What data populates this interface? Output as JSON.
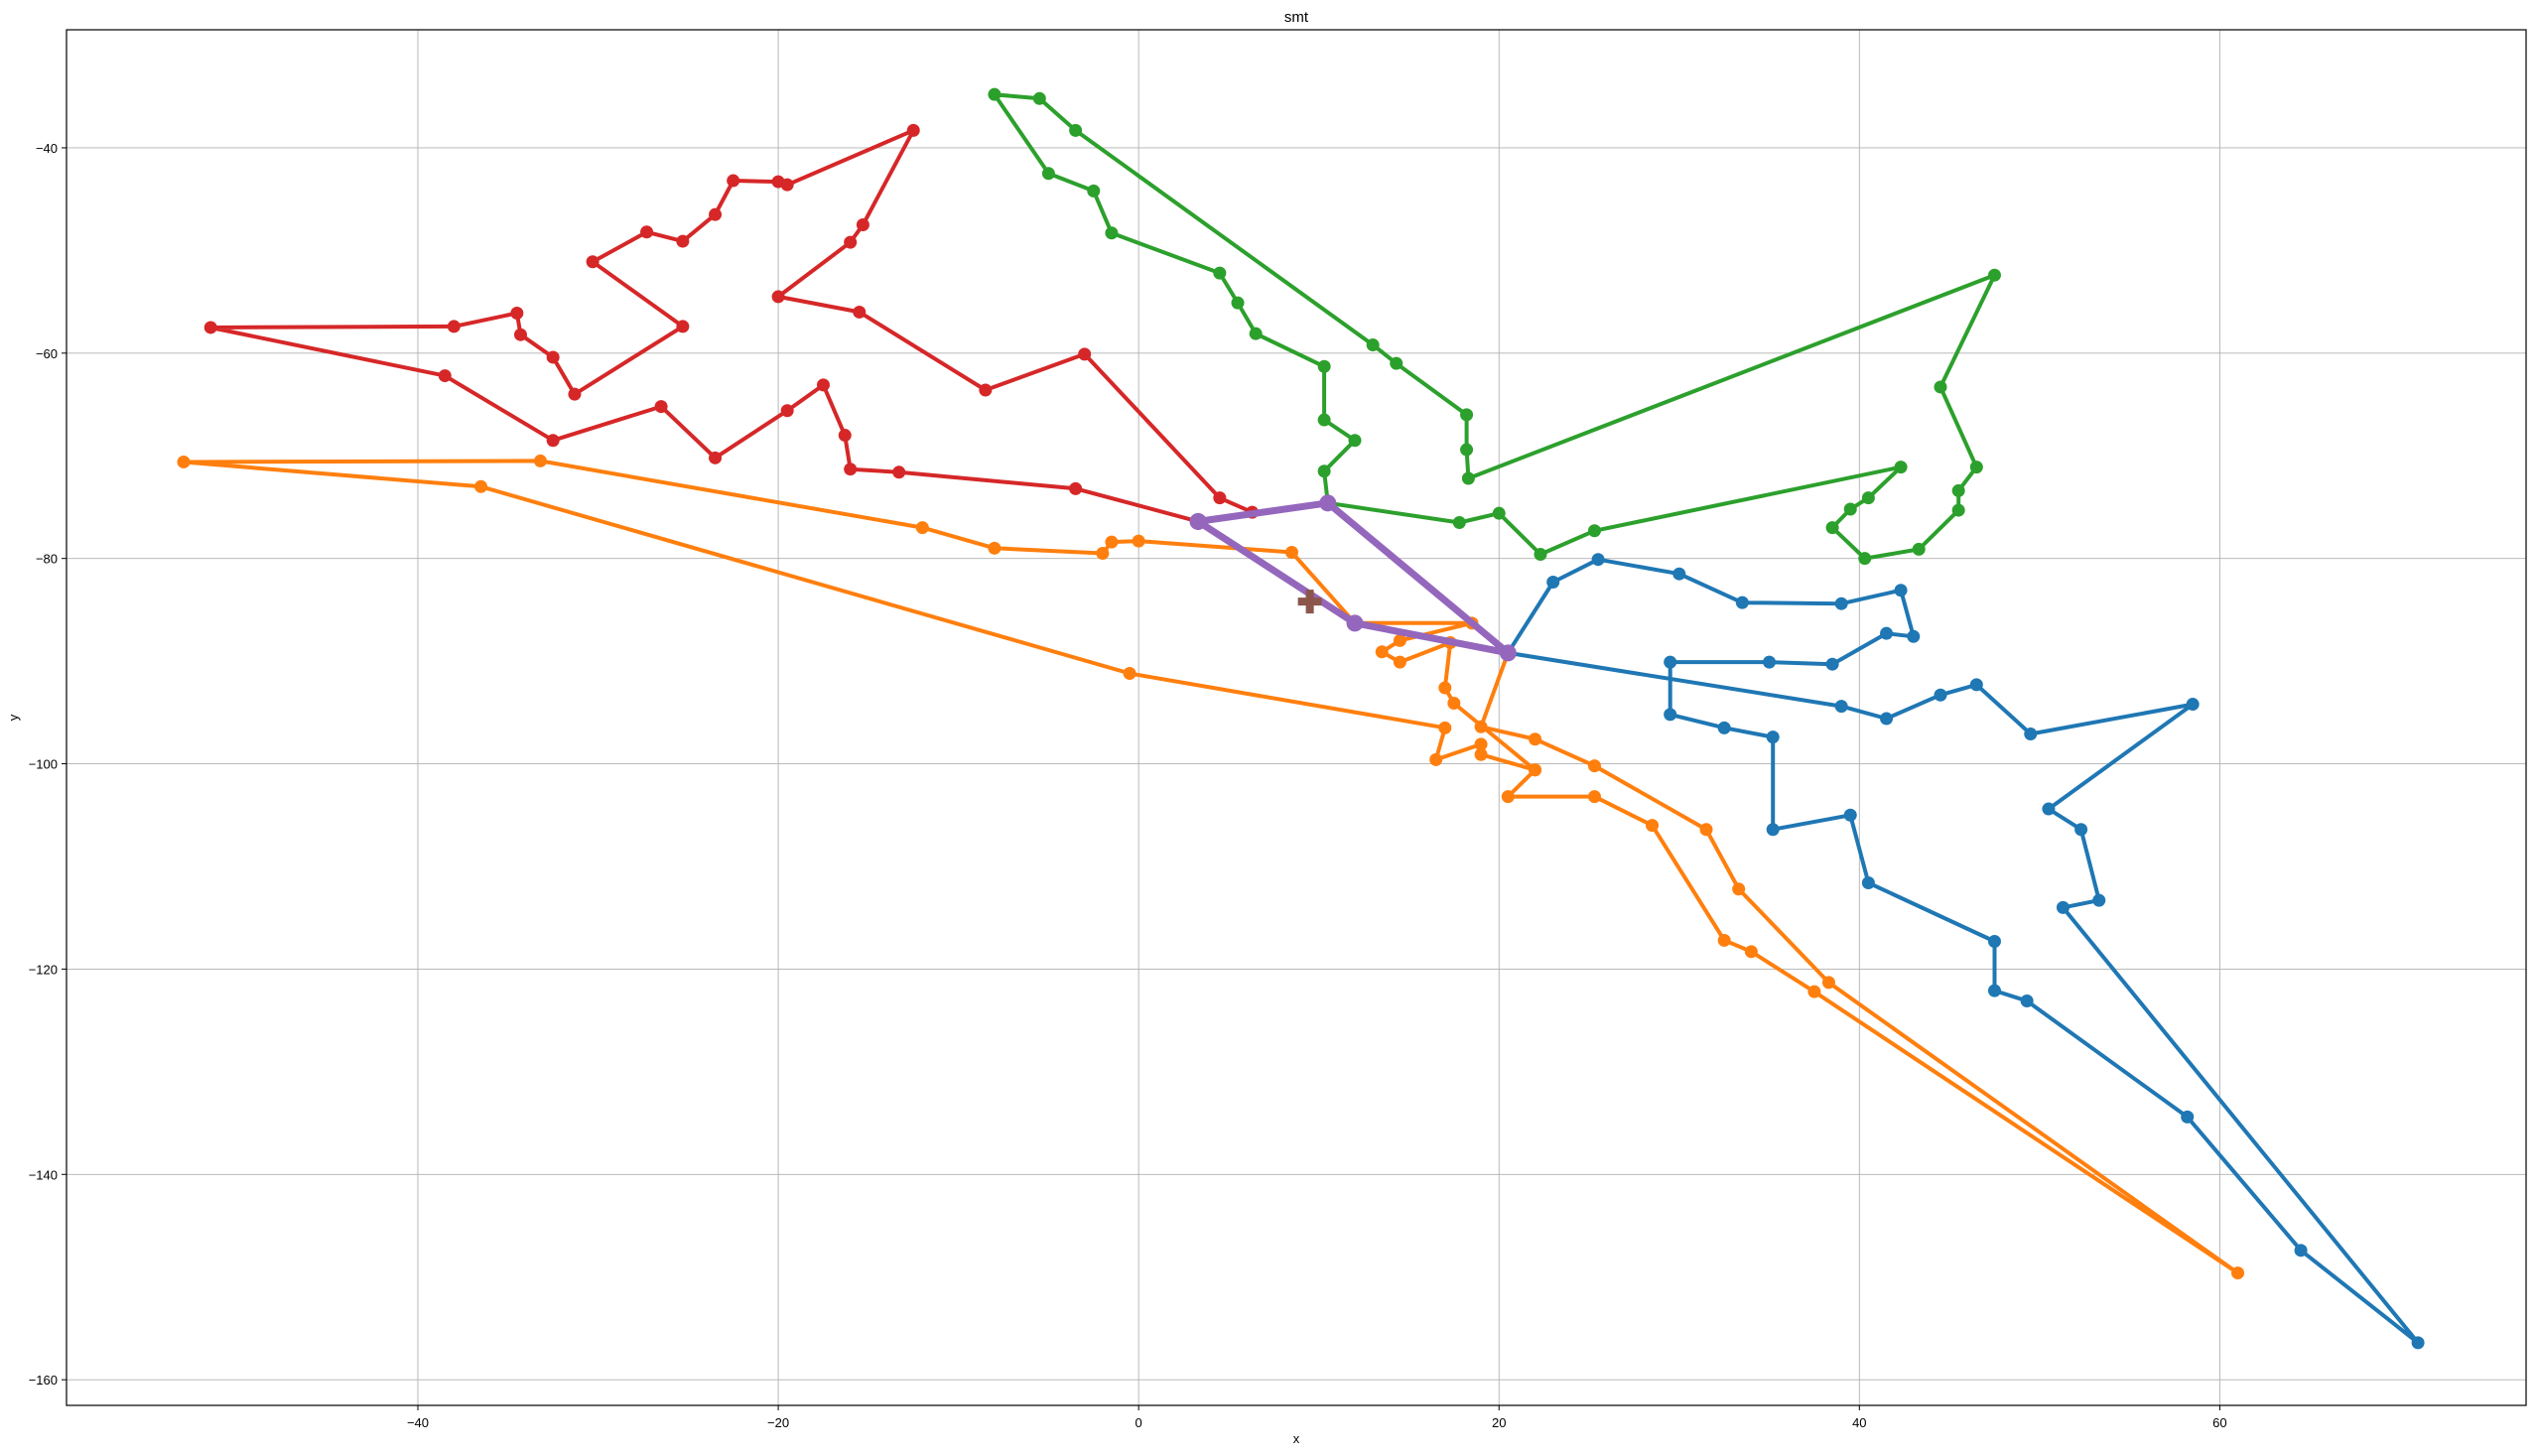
{
  "chart_data": {
    "type": "line",
    "title": "smt",
    "xlabel": "x",
    "ylabel": "y",
    "xlim": [
      -59.5,
      77
    ],
    "ylim": [
      -162.5,
      -28.5
    ],
    "xticks": [
      -40,
      -20,
      0,
      20,
      40,
      60
    ],
    "yticks": [
      -40,
      -60,
      -80,
      -100,
      -120,
      -140,
      -160
    ],
    "grid": true,
    "series": [
      {
        "color": "#1f77b4",
        "points": [
          [
            20.5,
            -89.2
          ],
          [
            23.0,
            -82.3
          ],
          [
            25.5,
            -80.1
          ],
          [
            30.0,
            -81.5
          ],
          [
            33.5,
            -84.3
          ],
          [
            39.0,
            -84.4
          ],
          [
            42.3,
            -83.1
          ],
          [
            43.0,
            -87.6
          ],
          [
            41.5,
            -87.3
          ],
          [
            38.5,
            -90.3
          ],
          [
            35.0,
            -90.1
          ],
          [
            29.5,
            -90.1
          ],
          [
            29.5,
            -95.2
          ],
          [
            32.5,
            -96.5
          ],
          [
            35.2,
            -97.4
          ],
          [
            35.2,
            -106.4
          ],
          [
            39.5,
            -105.0
          ],
          [
            40.5,
            -111.6
          ],
          [
            47.5,
            -117.3
          ],
          [
            47.5,
            -122.1
          ],
          [
            49.3,
            -123.1
          ],
          [
            58.2,
            -134.4
          ],
          [
            64.5,
            -147.4
          ],
          [
            71.0,
            -156.4
          ],
          [
            51.3,
            -114.0
          ],
          [
            53.3,
            -113.3
          ],
          [
            52.3,
            -106.4
          ],
          [
            50.5,
            -104.4
          ],
          [
            58.5,
            -94.2
          ],
          [
            49.5,
            -97.1
          ],
          [
            46.5,
            -92.3
          ],
          [
            44.5,
            -93.3
          ],
          [
            41.5,
            -95.6
          ],
          [
            39.0,
            -94.4
          ],
          [
            20.5,
            -89.2
          ]
        ]
      },
      {
        "color": "#ff7f0e",
        "points": [
          [
            12.0,
            -86.3
          ],
          [
            8.5,
            -79.4
          ],
          [
            0.0,
            -78.3
          ],
          [
            -1.5,
            -78.4
          ],
          [
            -2.0,
            -79.5
          ],
          [
            -8.0,
            -79.0
          ],
          [
            -12.0,
            -77.0
          ],
          [
            -33.2,
            -70.5
          ],
          [
            -53.0,
            -70.6
          ],
          [
            -36.5,
            -73.0
          ],
          [
            -0.5,
            -91.2
          ],
          [
            17.0,
            -96.5
          ],
          [
            16.5,
            -99.6
          ],
          [
            19.0,
            -98.1
          ],
          [
            19.0,
            -99.1
          ],
          [
            22.0,
            -100.6
          ],
          [
            17.5,
            -94.1
          ],
          [
            17.0,
            -92.6
          ],
          [
            17.3,
            -88.2
          ],
          [
            14.5,
            -90.1
          ],
          [
            13.5,
            -89.1
          ],
          [
            14.5,
            -88.0
          ],
          [
            18.5,
            -86.3
          ],
          [
            12.0,
            -86.3
          ]
        ]
      },
      {
        "color": "#ff7f0e",
        "points": [
          [
            20.5,
            -89.2
          ],
          [
            19.0,
            -96.4
          ],
          [
            22.0,
            -97.6
          ],
          [
            25.3,
            -100.2
          ],
          [
            31.5,
            -106.4
          ],
          [
            33.3,
            -112.2
          ],
          [
            38.3,
            -121.3
          ],
          [
            61.0,
            -149.6
          ],
          [
            37.5,
            -122.2
          ],
          [
            34.0,
            -118.3
          ],
          [
            32.5,
            -117.2
          ],
          [
            28.5,
            -106.0
          ],
          [
            25.3,
            -103.2
          ],
          [
            20.5,
            -103.2
          ],
          [
            22.0,
            -100.6
          ]
        ]
      },
      {
        "color": "#2ca02c",
        "points": [
          [
            10.5,
            -74.6
          ],
          [
            17.8,
            -76.5
          ],
          [
            20.0,
            -75.6
          ],
          [
            22.3,
            -79.6
          ],
          [
            25.3,
            -77.3
          ],
          [
            42.3,
            -71.1
          ],
          [
            40.5,
            -74.1
          ],
          [
            39.5,
            -75.2
          ],
          [
            38.5,
            -77.0
          ],
          [
            40.3,
            -80.0
          ],
          [
            43.3,
            -79.1
          ],
          [
            45.5,
            -75.3
          ],
          [
            45.5,
            -73.4
          ],
          [
            46.5,
            -71.1
          ],
          [
            44.5,
            -63.3
          ],
          [
            47.5,
            -52.4
          ],
          [
            18.3,
            -72.2
          ],
          [
            18.2,
            -69.4
          ],
          [
            18.2,
            -66.0
          ],
          [
            14.3,
            -61.0
          ],
          [
            13.0,
            -59.2
          ],
          [
            -3.5,
            -38.3
          ],
          [
            -5.5,
            -35.2
          ],
          [
            -8.0,
            -34.8
          ],
          [
            -5.0,
            -42.5
          ],
          [
            -2.5,
            -44.2
          ],
          [
            -1.5,
            -48.3
          ],
          [
            4.5,
            -52.2
          ],
          [
            5.5,
            -55.1
          ],
          [
            6.5,
            -58.1
          ],
          [
            10.3,
            -61.3
          ],
          [
            10.3,
            -66.5
          ],
          [
            12.0,
            -68.5
          ],
          [
            10.3,
            -71.5
          ],
          [
            10.5,
            -74.6
          ]
        ]
      },
      {
        "color": "#d62728",
        "points": [
          [
            3.3,
            -76.4
          ],
          [
            6.3,
            -75.5
          ],
          [
            4.5,
            -74.1
          ],
          [
            -3.0,
            -60.1
          ],
          [
            -8.5,
            -63.6
          ],
          [
            -15.5,
            -56.0
          ],
          [
            -20.0,
            -54.5
          ],
          [
            -16.0,
            -49.2
          ],
          [
            -15.3,
            -47.5
          ],
          [
            -12.5,
            -38.3
          ],
          [
            -19.5,
            -43.6
          ],
          [
            -20.0,
            -43.3
          ],
          [
            -22.5,
            -43.2
          ],
          [
            -23.5,
            -46.5
          ],
          [
            -25.3,
            -49.1
          ],
          [
            -27.3,
            -48.2
          ],
          [
            -30.3,
            -51.1
          ],
          [
            -25.3,
            -57.4
          ],
          [
            -31.3,
            -64.0
          ],
          [
            -32.5,
            -60.4
          ],
          [
            -34.3,
            -58.2
          ],
          [
            -34.5,
            -56.1
          ],
          [
            -38.0,
            -57.4
          ],
          [
            -51.5,
            -57.5
          ],
          [
            -38.5,
            -62.2
          ],
          [
            -32.5,
            -68.5
          ],
          [
            -26.5,
            -65.2
          ],
          [
            -23.5,
            -70.2
          ],
          [
            -19.5,
            -65.6
          ],
          [
            -17.5,
            -63.1
          ],
          [
            -16.3,
            -68.0
          ],
          [
            -16.0,
            -71.3
          ],
          [
            -13.3,
            -71.6
          ],
          [
            -3.5,
            -73.2
          ],
          [
            3.3,
            -76.4
          ]
        ]
      },
      {
        "color": "#9467bd",
        "thick": true,
        "points": [
          [
            3.3,
            -76.4
          ],
          [
            10.5,
            -74.6
          ],
          [
            20.5,
            -89.2
          ],
          [
            12.0,
            -86.3
          ],
          [
            3.3,
            -76.4
          ]
        ]
      }
    ],
    "marker": {
      "color": "#8c564b",
      "x": 9.5,
      "y": -84.2,
      "shape": "plus"
    }
  }
}
